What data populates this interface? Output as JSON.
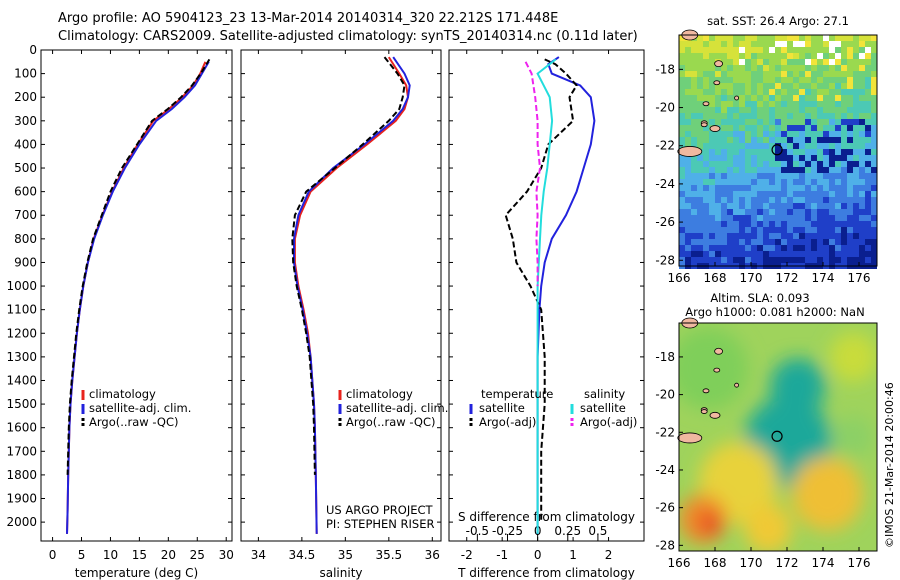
{
  "header": {
    "line1": "Argo profile: AO 5904123_23 13-Mar-2014 20140314_320 22.212S 171.448E",
    "line2": "Climatology: CARS2009. Satellite-adjusted climatology: synTS_20140314.nc (0.11d later)"
  },
  "colors": {
    "climatology": "#e8231d",
    "satellite": "#2222dd",
    "argo": "#000000",
    "salinity_satellite": "#22dddd",
    "salinity_argo": "#ee22ee"
  },
  "chart_data": [
    {
      "type": "line",
      "panel": "temperature",
      "xlabel": "temperature (deg C)",
      "ylabel": "",
      "xlim": [
        -2,
        31
      ],
      "ylim": [
        2080,
        0
      ],
      "xticks": [
        0,
        5,
        10,
        15,
        20,
        25,
        30
      ],
      "yticks": [
        0,
        100,
        200,
        300,
        400,
        500,
        600,
        700,
        800,
        900,
        1000,
        1100,
        1200,
        1300,
        1400,
        1500,
        1600,
        1700,
        1800,
        1900,
        2000
      ],
      "legend": [
        "climatology",
        "satellite-adj. clim.",
        "Argo(..raw -QC)"
      ],
      "legend_placement": "lower-center",
      "series": [
        {
          "name": "climatology",
          "color": "#e8231d",
          "style": "solid",
          "x": [
            26.4,
            25.5,
            24.3,
            22.4,
            20.1,
            17.4,
            14.7,
            12.3,
            10.3,
            8.6,
            7.1,
            6.1,
            5.3,
            4.7,
            4.2,
            3.8,
            3.4,
            3.1,
            2.9,
            2.7,
            2.6,
            2.5
          ],
          "y": [
            50,
            100,
            150,
            200,
            250,
            300,
            400,
            500,
            600,
            700,
            800,
            900,
            1000,
            1100,
            1200,
            1300,
            1400,
            1500,
            1600,
            1800,
            1950,
            2050
          ]
        },
        {
          "name": "satellite-adj. clim.",
          "color": "#2222dd",
          "style": "solid",
          "x": [
            27.0,
            25.8,
            24.6,
            22.8,
            20.6,
            17.9,
            15.0,
            12.5,
            10.4,
            8.7,
            7.2,
            6.1,
            5.3,
            4.7,
            4.2,
            3.8,
            3.4,
            3.1,
            2.9,
            2.7,
            2.6,
            2.5
          ],
          "y": [
            50,
            100,
            150,
            200,
            250,
            300,
            400,
            500,
            600,
            700,
            800,
            900,
            1000,
            1100,
            1200,
            1300,
            1400,
            1500,
            1600,
            1800,
            1950,
            2050
          ]
        },
        {
          "name": "Argo(..raw -QC)",
          "color": "#000000",
          "style": "dashed",
          "x": [
            27.1,
            25.6,
            24.1,
            22.2,
            19.9,
            17.2,
            14.6,
            12.0,
            10.0,
            8.5,
            7.0,
            6.0,
            5.2,
            4.6,
            4.1,
            3.7,
            3.3,
            3.0,
            2.8,
            2.6
          ],
          "y": [
            40,
            100,
            150,
            200,
            250,
            300,
            400,
            500,
            600,
            700,
            800,
            900,
            1000,
            1100,
            1200,
            1300,
            1400,
            1500,
            1600,
            1800
          ]
        }
      ]
    },
    {
      "type": "line",
      "panel": "salinity",
      "xlabel": "salinity",
      "ylabel": "",
      "xlim": [
        33.8,
        36.1
      ],
      "ylim": [
        2080,
        0
      ],
      "xticks": [
        34,
        34.5,
        35,
        35.5,
        36
      ],
      "legend": [
        "climatology",
        "satellite-adj. clim.",
        "Argo(..raw -QC)"
      ],
      "legend_placement": "lower-right",
      "annotation": [
        "US ARGO PROJECT",
        "PI: STEPHEN RISER"
      ],
      "series": [
        {
          "name": "climatology",
          "color": "#e8231d",
          "style": "solid",
          "x": [
            35.5,
            35.62,
            35.7,
            35.72,
            35.68,
            35.58,
            35.25,
            34.9,
            34.6,
            34.48,
            34.42,
            34.42,
            34.46,
            34.52,
            34.57,
            34.6,
            34.62,
            34.64,
            34.65,
            34.66,
            34.67
          ],
          "y": [
            30,
            100,
            150,
            200,
            250,
            300,
            400,
            500,
            600,
            700,
            800,
            900,
            1000,
            1100,
            1200,
            1300,
            1400,
            1500,
            1600,
            1800,
            2050
          ]
        },
        {
          "name": "satellite-adj. clim.",
          "color": "#2222dd",
          "style": "solid",
          "x": [
            35.55,
            35.68,
            35.74,
            35.72,
            35.66,
            35.55,
            35.22,
            34.86,
            34.58,
            34.46,
            34.41,
            34.41,
            34.45,
            34.51,
            34.56,
            34.6,
            34.62,
            34.64,
            34.65,
            34.66,
            34.67
          ],
          "y": [
            30,
            100,
            150,
            200,
            250,
            300,
            400,
            500,
            600,
            700,
            800,
            900,
            1000,
            1100,
            1200,
            1300,
            1400,
            1500,
            1600,
            1800,
            2050
          ]
        },
        {
          "name": "Argo(..raw -QC)",
          "color": "#000000",
          "style": "dashed",
          "x": [
            35.45,
            35.6,
            35.68,
            35.66,
            35.62,
            35.5,
            35.2,
            34.88,
            34.55,
            34.42,
            34.39,
            34.4,
            34.44,
            34.5,
            34.55,
            34.59,
            34.61,
            34.63,
            34.64,
            34.65
          ],
          "y": [
            30,
            100,
            150,
            200,
            250,
            300,
            400,
            500,
            600,
            700,
            800,
            900,
            1000,
            1100,
            1200,
            1300,
            1400,
            1500,
            1600,
            1800
          ]
        }
      ]
    },
    {
      "type": "line",
      "panel": "difference",
      "xlabel": "T difference from climatology",
      "x2label": "S difference from climatology",
      "ylabel": "",
      "xlim": [
        -2.5,
        3.0
      ],
      "ylim": [
        2080,
        0
      ],
      "xticks": [
        -2,
        -1,
        0,
        1,
        2
      ],
      "x2ticks": [
        -0.5,
        -0.25,
        0,
        0.25,
        0.5
      ],
      "x2tick_labels": [
        "-0.5",
        "-0.25",
        "0",
        "0.25",
        "0.5"
      ],
      "legend_groups": [
        {
          "title": "temperature",
          "items": [
            "satellite",
            "Argo(-adj)"
          ]
        },
        {
          "title": "salinity",
          "items": [
            "satellite",
            "Argo(-adj)"
          ]
        }
      ],
      "legend_placement": "lower-center",
      "series": [
        {
          "name": "temperature satellite",
          "color": "#2222dd",
          "style": "solid",
          "x": [
            0.6,
            0.3,
            0.4,
            1.2,
            1.5,
            1.6,
            1.5,
            1.3,
            1.1,
            0.8,
            0.4,
            0.2,
            0.1,
            0.05,
            0.0,
            0.0,
            0.0,
            0.0,
            0.0
          ],
          "y": [
            30,
            60,
            100,
            150,
            200,
            300,
            400,
            500,
            600,
            700,
            800,
            900,
            1000,
            1100,
            1300,
            1500,
            1700,
            1900,
            2050
          ]
        },
        {
          "name": "temperature Argo(-adj)",
          "color": "#000000",
          "style": "dashed",
          "x": [
            0.2,
            0.5,
            0.8,
            1.1,
            0.9,
            1.0,
            0.3,
            0.1,
            -0.3,
            -0.9,
            -0.7,
            -0.6,
            -0.2,
            0.1,
            0.2,
            0.2,
            0.1,
            0.1,
            0.1
          ],
          "y": [
            40,
            60,
            100,
            150,
            200,
            300,
            400,
            500,
            600,
            700,
            800,
            900,
            1000,
            1100,
            1300,
            1500,
            1700,
            1900,
            2000
          ]
        },
        {
          "name": "salinity satellite",
          "color": "#22dddd",
          "style": "solid",
          "x": [
            0.15,
            0.0,
            0.05,
            0.1,
            0.12,
            0.1,
            0.08,
            0.05,
            0.03,
            0.02,
            0.01,
            0.0,
            0.0,
            0.0,
            0.0
          ],
          "y": [
            40,
            100,
            150,
            200,
            300,
            400,
            500,
            600,
            700,
            800,
            900,
            1000,
            1300,
            1700,
            2050
          ],
          "axis": "x2"
        },
        {
          "name": "salinity Argo(-adj)",
          "color": "#ee22ee",
          "style": "dashed",
          "x": [
            -0.1,
            -0.05,
            -0.02,
            0.0,
            0.0,
            0.02,
            -0.01,
            0.0,
            -0.01,
            0.0,
            0.0
          ],
          "y": [
            50,
            100,
            200,
            300,
            400,
            500,
            600,
            700,
            800,
            900,
            1000
          ],
          "axis": "x2"
        }
      ]
    }
  ],
  "maps": {
    "sst": {
      "title": "sat. SST: 26.4 Argo: 27.1",
      "xticks": [
        "166",
        "168",
        "170",
        "172",
        "174",
        "176"
      ],
      "yticks": [
        "-18",
        "-20",
        "-22",
        "-24",
        "-26",
        "-28"
      ],
      "xlim": [
        166,
        177
      ],
      "ylim": [
        -28.3,
        -16.2
      ]
    },
    "sla": {
      "title_line1": "Altim. SLA: 0.093",
      "title_line2": "Argo h1000: 0.081 h2000: NaN",
      "xticks": [
        "166",
        "168",
        "170",
        "172",
        "174",
        "176"
      ],
      "yticks": [
        "-18",
        "-20",
        "-22",
        "-24",
        "-26",
        "-28"
      ],
      "xlim": [
        166,
        177
      ],
      "ylim": [
        -28.3,
        -16.2
      ],
      "timestamp": "©IMOS 21-Mar-2014 20:00:46"
    },
    "argo_position": {
      "lon": 171.448,
      "lat": -22.212
    }
  }
}
